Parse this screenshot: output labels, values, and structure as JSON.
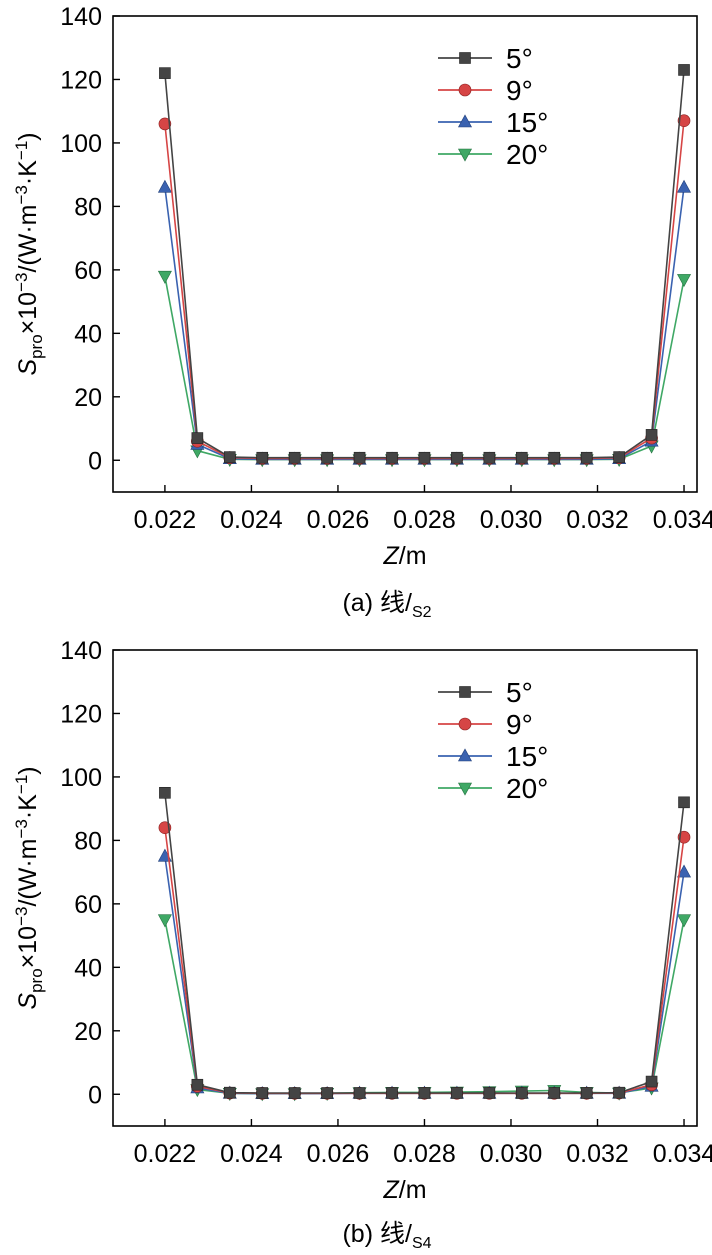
{
  "colors": {
    "5": "#444444",
    "9": "#d64545",
    "15": "#3a62b0",
    "20": "#3fa865"
  },
  "chart_data": [
    {
      "type": "line",
      "caption": {
        "prefix": "(a) 线/",
        "sub": "S2"
      },
      "xlabel": {
        "italic": "Z",
        "rest": "/m"
      },
      "ylabel": {
        "s": "S",
        "sub": "pro",
        "rest": "×10",
        "exp": "−3",
        "unit": "/(W·m",
        "unitexp": "−3",
        "unit2": "·K",
        "unit2exp": "−1",
        "close": ")"
      },
      "xlim": [
        0.0208,
        0.0343
      ],
      "ylim": [
        -10,
        140
      ],
      "xticks": [
        0.022,
        0.024,
        0.026,
        0.028,
        0.03,
        0.032,
        0.034
      ],
      "xtick_labels": [
        "0.022",
        "0.024",
        "0.026",
        "0.028",
        "0.030",
        "0.032",
        "0.034"
      ],
      "yticks": [
        0,
        20,
        40,
        60,
        80,
        100,
        120,
        140
      ],
      "ytick_labels": [
        "0",
        "20",
        "40",
        "60",
        "80",
        "100",
        "120",
        "140"
      ],
      "x": [
        0.022,
        0.02275,
        0.0235,
        0.02425,
        0.025,
        0.02575,
        0.0265,
        0.02725,
        0.028,
        0.02875,
        0.0295,
        0.03025,
        0.031,
        0.03175,
        0.0325,
        0.03325,
        0.034
      ],
      "series": [
        {
          "name": "5°",
          "marker": "square",
          "color_key": "5",
          "values": [
            122,
            7,
            1,
            0.8,
            0.8,
            0.8,
            0.8,
            0.8,
            0.8,
            0.8,
            0.8,
            0.8,
            0.8,
            0.8,
            1,
            8,
            123
          ]
        },
        {
          "name": "9°",
          "marker": "circle",
          "color_key": "9",
          "values": [
            106,
            6,
            0.8,
            0.6,
            0.6,
            0.6,
            0.6,
            0.6,
            0.6,
            0.6,
            0.6,
            0.6,
            0.6,
            0.6,
            0.8,
            7,
            107
          ]
        },
        {
          "name": "15°",
          "marker": "triangle-up",
          "color_key": "15",
          "values": [
            86,
            5,
            0.5,
            0.3,
            0.3,
            0.3,
            0.3,
            0.3,
            0.3,
            0.3,
            0.3,
            0.3,
            0.3,
            0.3,
            0.5,
            6,
            86
          ]
        },
        {
          "name": "20°",
          "marker": "triangle-down",
          "color_key": "20",
          "values": [
            58,
            3,
            0.3,
            0.2,
            0.2,
            0.2,
            0.2,
            0.2,
            0.2,
            0.2,
            0.2,
            0.2,
            0.2,
            0.2,
            0.3,
            4.5,
            57
          ]
        }
      ]
    },
    {
      "type": "line",
      "caption": {
        "prefix": "(b) 线/",
        "sub": "S4"
      },
      "xlabel": {
        "italic": "Z",
        "rest": "/m"
      },
      "ylabel": {
        "s": "S",
        "sub": "pro",
        "rest": "×10",
        "exp": "−3",
        "unit": "/(W·m",
        "unitexp": "−3",
        "unit2": "·K",
        "unit2exp": "−1",
        "close": ")"
      },
      "xlim": [
        0.0208,
        0.0343
      ],
      "ylim": [
        -10,
        140
      ],
      "xticks": [
        0.022,
        0.024,
        0.026,
        0.028,
        0.03,
        0.032,
        0.034
      ],
      "xtick_labels": [
        "0.022",
        "0.024",
        "0.026",
        "0.028",
        "0.030",
        "0.032",
        "0.034"
      ],
      "yticks": [
        0,
        20,
        40,
        60,
        80,
        100,
        120,
        140
      ],
      "ytick_labels": [
        "0",
        "20",
        "40",
        "60",
        "80",
        "100",
        "120",
        "140"
      ],
      "x": [
        0.022,
        0.02275,
        0.0235,
        0.02425,
        0.025,
        0.02575,
        0.0265,
        0.02725,
        0.028,
        0.02875,
        0.0295,
        0.03025,
        0.031,
        0.03175,
        0.0325,
        0.03325,
        0.034
      ],
      "series": [
        {
          "name": "5°",
          "marker": "square",
          "color_key": "5",
          "values": [
            95,
            3,
            0.5,
            0.4,
            0.4,
            0.4,
            0.4,
            0.4,
            0.4,
            0.4,
            0.4,
            0.4,
            0.4,
            0.4,
            0.5,
            4,
            92
          ]
        },
        {
          "name": "9°",
          "marker": "circle",
          "color_key": "9",
          "values": [
            84,
            2.5,
            0.4,
            0.3,
            0.3,
            0.3,
            0.3,
            0.3,
            0.3,
            0.3,
            0.3,
            0.3,
            0.3,
            0.3,
            0.4,
            3,
            81
          ]
        },
        {
          "name": "15°",
          "marker": "triangle-up",
          "color_key": "15",
          "values": [
            75,
            2,
            0.3,
            0.2,
            0.2,
            0.2,
            0.3,
            0.3,
            0.3,
            0.3,
            0.3,
            0.3,
            0.3,
            0.3,
            0.3,
            2.5,
            70
          ]
        },
        {
          "name": "20°",
          "marker": "triangle-down",
          "color_key": "20",
          "values": [
            55,
            1.5,
            0.3,
            0.2,
            0.2,
            0.3,
            0.5,
            0.6,
            0.6,
            0.7,
            0.8,
            1.0,
            1.2,
            0.6,
            0.4,
            2,
            55
          ]
        }
      ]
    }
  ]
}
